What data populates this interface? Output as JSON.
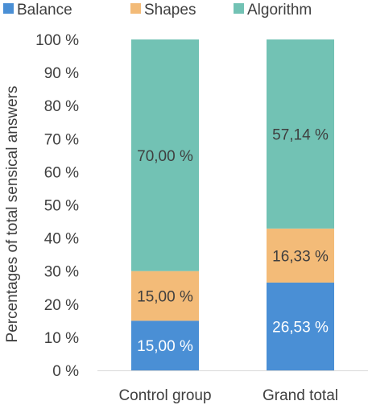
{
  "chart_data": {
    "type": "bar",
    "stacked": true,
    "categories": [
      "Control group",
      "Grand total"
    ],
    "series": [
      {
        "name": "Balance",
        "values": [
          15.0,
          26.53
        ],
        "labels": [
          "15,00 %",
          "26,53 %"
        ],
        "color": "#4A8FD5",
        "label_color": "#ffffff"
      },
      {
        "name": "Shapes",
        "values": [
          15.0,
          16.33
        ],
        "labels": [
          "15,00 %",
          "16,33 %"
        ],
        "color": "#F3BB78",
        "label_color": "#3f3f3f"
      },
      {
        "name": "Algorithm",
        "values": [
          70.0,
          57.14
        ],
        "labels": [
          "70,00 %",
          "57,14 %"
        ],
        "color": "#72C2B4",
        "label_color": "#3f3f3f"
      }
    ],
    "ylabel": "Percentages of total sensical answers",
    "ylim": [
      0,
      100
    ],
    "yticks": [
      0,
      10,
      20,
      30,
      40,
      50,
      60,
      70,
      80,
      90,
      100
    ],
    "ytick_labels": [
      "0 %",
      "10 %",
      "20 %",
      "30 %",
      "40 %",
      "50 %",
      "60 %",
      "70 %",
      "80 %",
      "90 %",
      "100 %"
    ],
    "grid": false,
    "legend_position": "top"
  }
}
